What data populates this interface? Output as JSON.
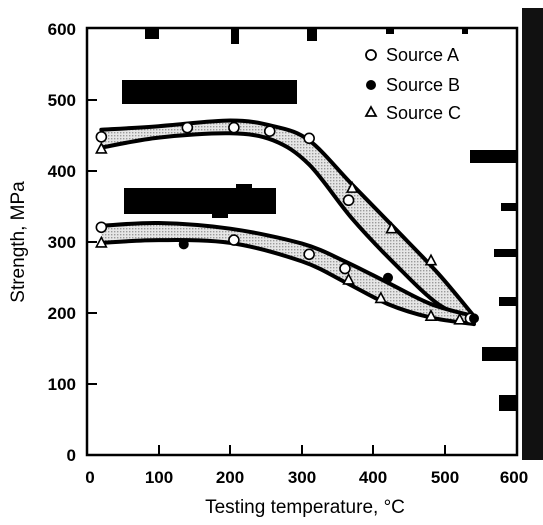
{
  "chart_data": {
    "type": "scatter",
    "title": "",
    "xlabel": "Testing temperature, °C",
    "ylabel": "Strength, MPa",
    "xlim": [
      0,
      600
    ],
    "ylim": [
      0,
      600
    ],
    "xticks": [
      0,
      100,
      200,
      300,
      400,
      500,
      600
    ],
    "yticks": [
      0,
      100,
      200,
      300,
      400,
      500,
      600
    ],
    "grid": false,
    "legend_position": "top-right",
    "series": [
      {
        "name": "Source A",
        "marker": "open-circle",
        "x": [
          20,
          140,
          205,
          255,
          310,
          365,
          535
        ],
        "y": [
          447,
          460,
          460,
          455,
          445,
          358,
          192
        ]
      },
      {
        "name": "Source B",
        "marker": "filled-circle",
        "x": [
          135,
          420,
          540
        ],
        "y": [
          296,
          249,
          192
        ]
      },
      {
        "name": "Source C",
        "marker": "open-triangle",
        "x": [
          20,
          370,
          425,
          480
        ],
        "y": [
          430,
          375,
          318,
          273
        ]
      },
      {
        "name": "Source A",
        "marker": "open-circle",
        "x": [
          20,
          205,
          310,
          360
        ],
        "y": [
          320,
          302,
          282,
          262
        ]
      },
      {
        "name": "Source C",
        "marker": "open-triangle",
        "x": [
          20,
          365,
          410,
          480,
          520
        ],
        "y": [
          298,
          246,
          220,
          195,
          190
        ]
      }
    ],
    "bands": [
      {
        "upper": [
          [
            20,
            457
          ],
          [
            100,
            462
          ],
          [
            200,
            470
          ],
          [
            260,
            462
          ],
          [
            310,
            442
          ],
          [
            370,
            380
          ],
          [
            430,
            318
          ],
          [
            490,
            255
          ],
          [
            540,
            195
          ]
        ],
        "lower": [
          [
            20,
            432
          ],
          [
            100,
            446
          ],
          [
            200,
            452
          ],
          [
            260,
            442
          ],
          [
            310,
            408
          ],
          [
            370,
            332
          ],
          [
            430,
            268
          ],
          [
            490,
            212
          ],
          [
            540,
            190
          ]
        ]
      },
      {
        "upper": [
          [
            20,
            322
          ],
          [
            100,
            326
          ],
          [
            200,
            318
          ],
          [
            300,
            297
          ],
          [
            360,
            272
          ],
          [
            420,
            242
          ],
          [
            480,
            212
          ],
          [
            540,
            195
          ]
        ],
        "lower": [
          [
            20,
            298
          ],
          [
            100,
            302
          ],
          [
            200,
            298
          ],
          [
            300,
            272
          ],
          [
            360,
            243
          ],
          [
            420,
            212
          ],
          [
            480,
            193
          ],
          [
            540,
            184
          ]
        ]
      }
    ],
    "colors": {
      "band_fill": "#9a9a9a",
      "curve": "#000000",
      "background": "#ffffff"
    }
  }
}
